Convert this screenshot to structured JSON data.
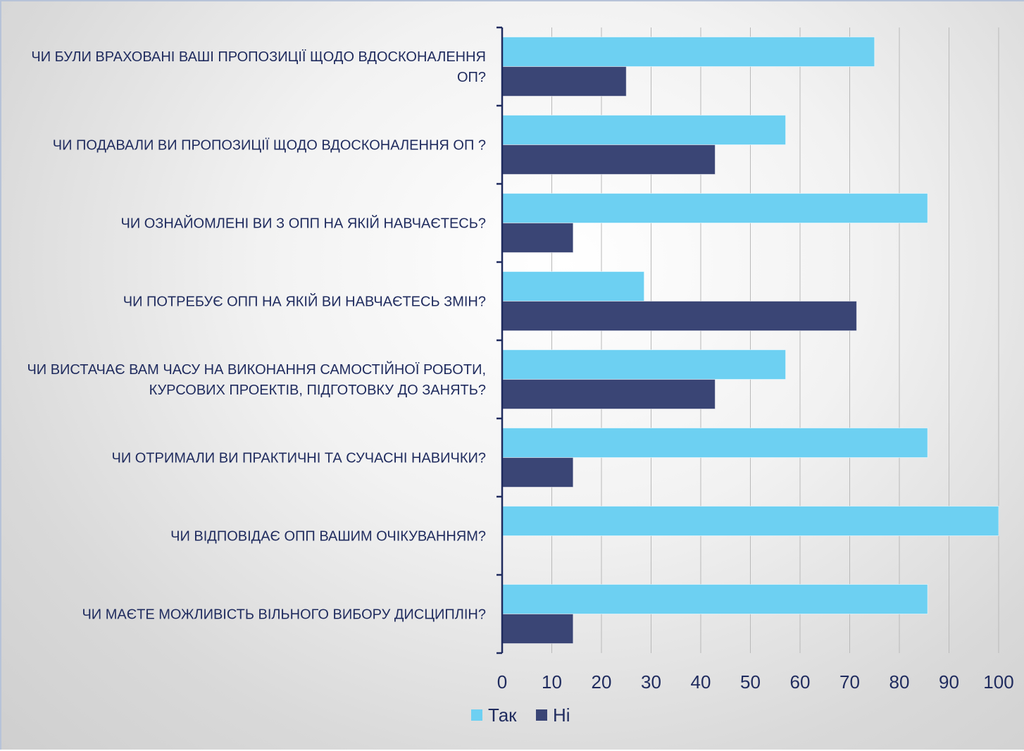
{
  "chart_data": {
    "type": "bar",
    "orientation": "horizontal",
    "title": "",
    "xlabel": "",
    "ylabel": "",
    "xlim": [
      0,
      100
    ],
    "ticks": [
      0,
      10,
      20,
      30,
      40,
      50,
      60,
      70,
      80,
      90,
      100
    ],
    "grid": true,
    "legend_position": "bottom",
    "categories": [
      [
        "ЧИ БУЛИ ВРАХОВАНІ ВАШІ ПРОПОЗИЦІЇ  ЩОДО ВДОСКОНАЛЕННЯ",
        "ОП?"
      ],
      [
        "ЧИ ПОДАВАЛИ ВИ ПРОПОЗИЦІЇ ЩОДО ВДОСКОНАЛЕННЯ ОП ?"
      ],
      [
        "ЧИ ОЗНАЙОМЛЕНІ ВИ З ОПП НА ЯКІЙ НАВЧАЄТЕСЬ?"
      ],
      [
        "ЧИ ПОТРЕБУЄ ОПП НА ЯКІЙ ВИ НАВЧАЄТЕСЬ ЗМІН?"
      ],
      [
        "ЧИ ВИСТАЧАЄ ВАМ ЧАСУ НА ВИКОНАННЯ САМОСТІЙНОЇ РОБОТИ,",
        "КУРСОВИХ ПРОЕКТІВ, ПІДГОТОВКУ ДО ЗАНЯТЬ?"
      ],
      [
        "ЧИ ОТРИМАЛИ ВИ ПРАКТИЧНІ ТА СУЧАСНІ НАВИЧКИ?"
      ],
      [
        "ЧИ ВІДПОВІДАЄ ОПП ВАШИМ ОЧІКУВАННЯМ?"
      ],
      [
        "ЧИ МАЄТЕ МОЖЛИВІСТЬ ВІЛЬНОГО ВИБОРУ ДИСЦИПЛІН?"
      ]
    ],
    "series": [
      {
        "name": "Так",
        "color": "#6dd0f2",
        "values": [
          75,
          57.1,
          85.7,
          28.6,
          57.1,
          85.7,
          100,
          85.7
        ]
      },
      {
        "name": "Ні",
        "color": "#3a4575",
        "values": [
          25,
          42.9,
          14.3,
          71.4,
          42.9,
          14.3,
          0,
          14.3
        ]
      }
    ]
  },
  "colors": {
    "axis": "#1f2b5e",
    "gridline": "#b9b9b9",
    "text": "#1f2b5e"
  }
}
